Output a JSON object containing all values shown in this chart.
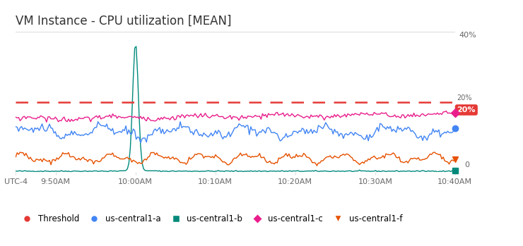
{
  "title": "VM Instance - CPU utilization [MEAN]",
  "title_fontsize": 12,
  "background_color": "#ffffff",
  "plot_bg_color": "#ffffff",
  "ylim": [
    0,
    40
  ],
  "ytick_label_40": "40%",
  "ytick_label_0": "0",
  "xtick_positions": [
    0,
    5,
    15,
    25,
    35,
    45,
    55
  ],
  "xtick_labels": [
    "UTC-4",
    "9:50AM",
    "10:00AM",
    "10:10AM",
    "10:20AM",
    "10:30AM",
    "10:40AM"
  ],
  "threshold_value": 20,
  "threshold_color": "#e53935",
  "threshold_label": "20%",
  "color_a": "#4285f4",
  "color_b": "#00897b",
  "color_c": "#e91e8c",
  "color_f": "#e65100",
  "label_a": "us-central1-a",
  "label_b": "us-central1-b",
  "label_c": "us-central1-c",
  "label_f": "us-central1-f",
  "label_threshold": "Threshold",
  "grid_color": "#dddddd",
  "tick_label_color": "#666666",
  "title_color": "#333333"
}
